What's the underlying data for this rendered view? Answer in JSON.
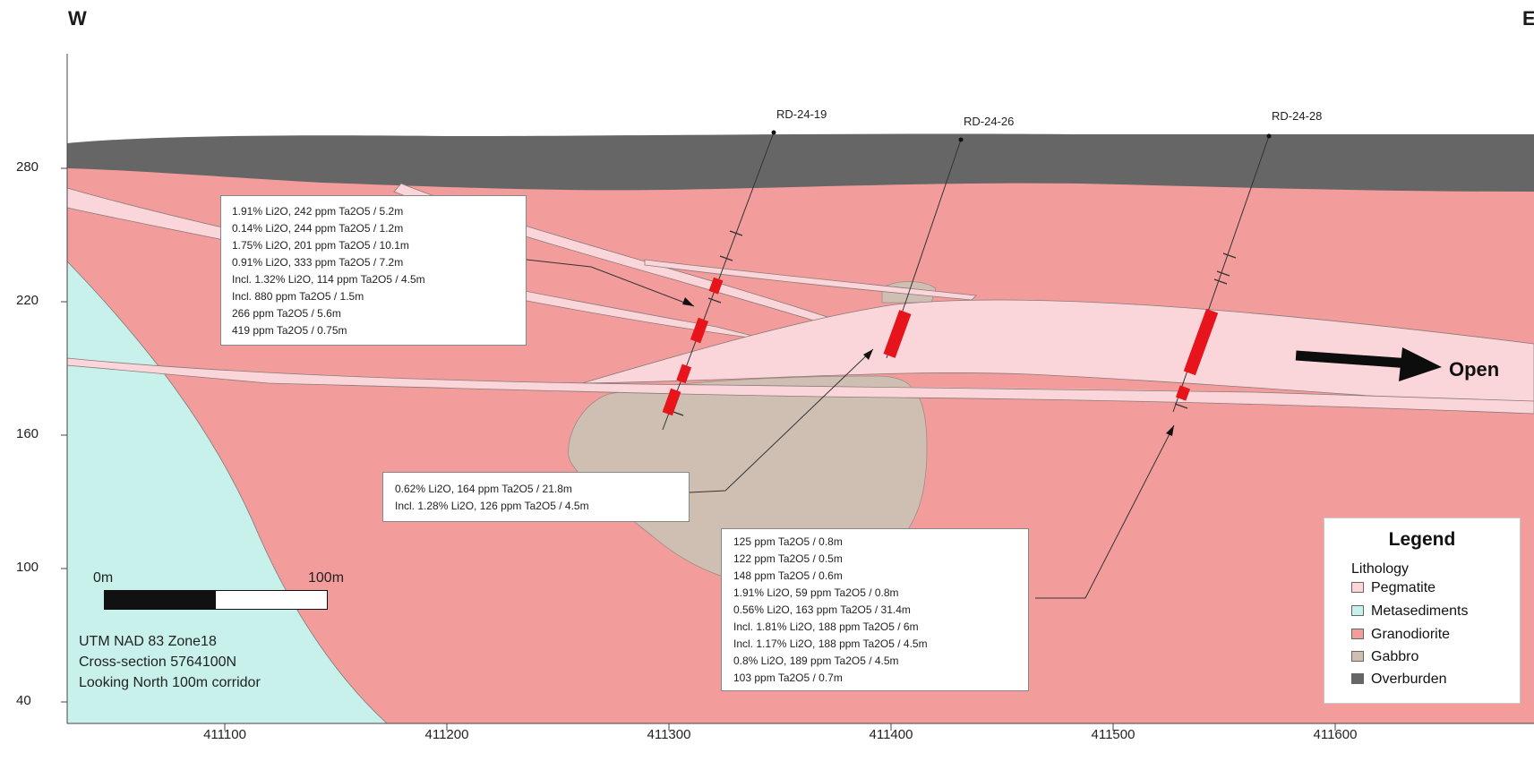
{
  "orientation": {
    "west": "W",
    "east": "E"
  },
  "y_axis_ticks": [
    "280",
    "220",
    "160",
    "100",
    "40"
  ],
  "x_axis_ticks": [
    "411100",
    "411200",
    "411300",
    "411400",
    "411500",
    "411600"
  ],
  "drillholes": [
    {
      "id": "RD-24-19"
    },
    {
      "id": "RD-24-26"
    },
    {
      "id": "RD-24-28"
    }
  ],
  "annotations": {
    "rd_24_19": {
      "lines": [
        "1.91% Li2O, 242 ppm Ta2O5 / 5.2m",
        "0.14% Li2O, 244 ppm Ta2O5 / 1.2m",
        "1.75% Li2O, 201 ppm Ta2O5 / 10.1m",
        "0.91% Li2O, 333 ppm Ta2O5 / 7.2m",
        "Incl. 1.32% Li2O, 114 ppm Ta2O5 / 4.5m",
        "Incl. 880 ppm Ta2O5 / 1.5m",
        "266 ppm Ta2O5 / 5.6m",
        "419 ppm Ta2O5 / 0.75m"
      ]
    },
    "rd_24_26": {
      "lines": [
        "0.62% Li2O, 164 ppm Ta2O5 / 21.8m",
        "Incl. 1.28% Li2O, 126 ppm Ta2O5 / 4.5m"
      ]
    },
    "rd_24_28": {
      "lines": [
        "125 ppm Ta2O5 / 0.8m",
        "122 ppm Ta2O5 / 0.5m",
        "148 ppm Ta2O5 / 0.6m",
        "1.91% Li2O, 59 ppm Ta2O5 / 0.8m",
        "0.56% Li2O, 163 ppm Ta2O5 / 31.4m",
        "Incl. 1.81% Li2O, 188 ppm Ta2O5 / 6m",
        "Incl. 1.17% Li2O, 188 ppm Ta2O5 / 4.5m",
        "0.8% Li2O, 189 ppm Ta2O5 / 4.5m",
        "103 ppm Ta2O5 / 0.7m"
      ]
    }
  },
  "open_label": "Open",
  "scale": {
    "start": "0m",
    "end": "100m"
  },
  "projection": [
    "UTM NAD 83 Zone18",
    "Cross-section 5764100N",
    "Looking North 100m corridor"
  ],
  "legend": {
    "title": "Legend",
    "subtitle": "Lithology",
    "items": [
      {
        "label": "Pegmatite",
        "color": "#fad6da"
      },
      {
        "label": "Metasediments",
        "color": "#c9f1ec"
      },
      {
        "label": "Granodiorite",
        "color": "#f39c9c"
      },
      {
        "label": "Gabbro",
        "color": "#cfbfb3"
      },
      {
        "label": "Overburden",
        "color": "#666666"
      }
    ]
  },
  "colors": {
    "granodiorite": "#f39c9c",
    "metasediments": "#c9f1ec",
    "pegmatite": "#fad6da",
    "gabbro": "#cfbfb3",
    "overburden": "#666666",
    "intercept": "#e8141b"
  }
}
